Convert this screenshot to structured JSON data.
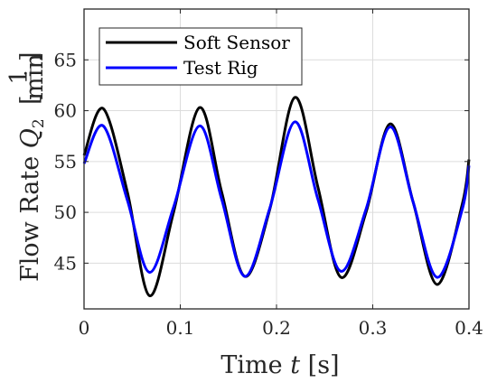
{
  "chart_data": {
    "type": "line",
    "xlabel": {
      "prefix": "Time ",
      "var": "t",
      "unit": " [s]"
    },
    "ylabel": {
      "prefix": "Flow Rate ",
      "var": "Q",
      "sub": "2",
      "unit_num": "1",
      "unit_den": "min"
    },
    "xlim": [
      0,
      0.4
    ],
    "ylim": [
      40.5,
      70
    ],
    "xticks": [
      0,
      0.1,
      0.2,
      0.3,
      0.4
    ],
    "xtick_labels": [
      "0",
      "0.1",
      "0.2",
      "0.3",
      "0.4"
    ],
    "yticks": [
      45,
      50,
      55,
      60,
      65
    ],
    "ytick_labels": [
      "45",
      "50",
      "55",
      "60",
      "65"
    ],
    "grid": true,
    "legend_position": "top-left",
    "series": [
      {
        "name": "Soft Sensor",
        "color": "#000000",
        "points": [
          [
            0.0,
            55.6
          ],
          [
            0.02,
            60.2
          ],
          [
            0.045,
            52.0
          ],
          [
            0.068,
            41.8
          ],
          [
            0.093,
            50.0
          ],
          [
            0.12,
            60.3
          ],
          [
            0.143,
            52.0
          ],
          [
            0.167,
            43.7
          ],
          [
            0.193,
            50.3
          ],
          [
            0.219,
            61.3
          ],
          [
            0.243,
            52.5
          ],
          [
            0.267,
            43.6
          ],
          [
            0.293,
            50.0
          ],
          [
            0.318,
            58.7
          ],
          [
            0.342,
            51.0
          ],
          [
            0.367,
            42.9
          ],
          [
            0.393,
            50.8
          ],
          [
            0.4,
            55.2
          ]
        ]
      },
      {
        "name": "Test Rig",
        "color": "#0000ff",
        "points": [
          [
            0.0,
            54.8
          ],
          [
            0.02,
            58.5
          ],
          [
            0.045,
            51.2
          ],
          [
            0.068,
            44.1
          ],
          [
            0.093,
            50.5
          ],
          [
            0.12,
            58.5
          ],
          [
            0.143,
            51.3
          ],
          [
            0.167,
            43.7
          ],
          [
            0.193,
            50.4
          ],
          [
            0.219,
            58.9
          ],
          [
            0.243,
            51.3
          ],
          [
            0.267,
            44.2
          ],
          [
            0.293,
            50.3
          ],
          [
            0.318,
            58.4
          ],
          [
            0.342,
            51.0
          ],
          [
            0.367,
            43.6
          ],
          [
            0.393,
            50.3
          ],
          [
            0.4,
            54.6
          ]
        ]
      }
    ]
  }
}
